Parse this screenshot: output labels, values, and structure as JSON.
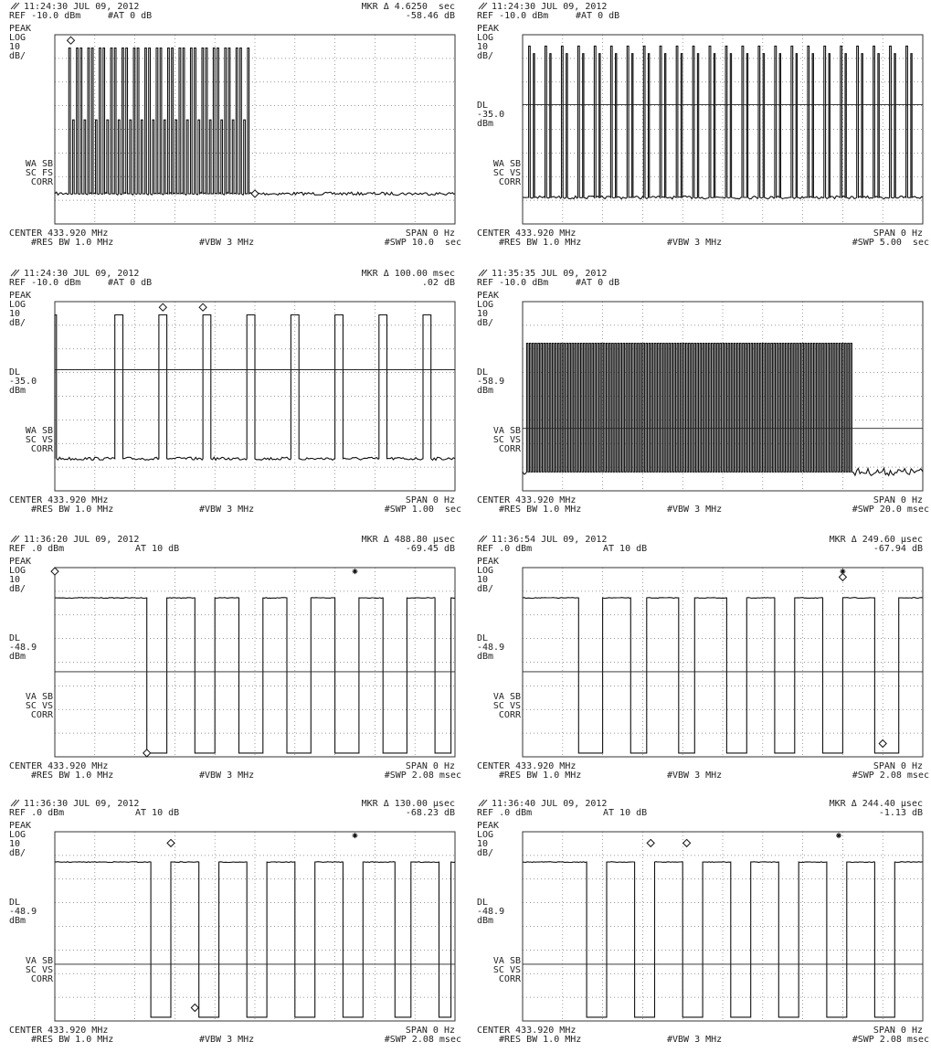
{
  "panels": [
    {
      "time": "11:24:30 JUL 09, 2012",
      "ref": "REF -10.0 dBm",
      "at": "#AT 0 dB",
      "marker": [
        "MKR Δ 4.6250  sec",
        "-58.46 dB"
      ],
      "scale": [
        "PEAK",
        "LOG",
        "10",
        "dB/"
      ],
      "status": [
        "WA SB",
        "SC FS",
        "CORR"
      ],
      "center": "CENTER 433.920 MHz",
      "span": "SPAN 0 Hz",
      "rbw": "#RES BW 1.0 MHz",
      "vbw": "#VBW 3 MHz",
      "swp": "#SWP 10.0  sec"
    },
    {
      "time": "11:24:30 JUL 09, 2012",
      "ref": "REF -10.0 dBm",
      "at": "#AT 0 dB",
      "scale": [
        "PEAK",
        "LOG",
        "10",
        "dB/"
      ],
      "dl": [
        "DL",
        "-35.0",
        "dBm"
      ],
      "status": [
        "WA SB",
        "SC VS",
        "CORR"
      ],
      "center": "CENTER 433.920 MHz",
      "span": "SPAN 0 Hz",
      "rbw": "#RES BW 1.0 MHz",
      "vbw": "#VBW 3 MHz",
      "swp": "#SWP 5.00  sec"
    },
    {
      "time": "11:24:30 JUL 09, 2012",
      "ref": "REF -10.0 dBm",
      "at": "#AT 0 dB",
      "marker": [
        "MKR Δ 100.00 msec",
        ".02 dB"
      ],
      "scale": [
        "PEAK",
        "LOG",
        "10",
        "dB/"
      ],
      "dl": [
        "DL",
        "-35.0",
        "dBm"
      ],
      "status": [
        "WA SB",
        "SC VS",
        "CORR"
      ],
      "center": "CENTER 433.920 MHz",
      "span": "SPAN 0 Hz",
      "rbw": "#RES BW 1.0 MHz",
      "vbw": "#VBW 3 MHz",
      "swp": "#SWP 1.00  sec"
    },
    {
      "time": "11:35:35 JUL 09, 2012",
      "ref": "REF -10.0 dBm",
      "at": "#AT 0 dB",
      "scale": [
        "PEAK",
        "LOG",
        "10",
        "dB/"
      ],
      "dl": [
        "DL",
        "-58.9",
        "dBm"
      ],
      "status": [
        "VA SB",
        "SC VS",
        "CORR"
      ],
      "center": "CENTER 433.920 MHz",
      "span": "SPAN 0 Hz",
      "rbw": "#RES BW 1.0 MHz",
      "vbw": "#VBW 3 MHz",
      "swp": "#SWP 20.0 msec"
    },
    {
      "time": "11:36:20 JUL 09, 2012",
      "ref": "REF .0 dBm",
      "at": "AT 10 dB",
      "marker": [
        "MKR Δ 488.80 µsec",
        "-69.45 dB"
      ],
      "scale": [
        "PEAK",
        "LOG",
        "10",
        "dB/"
      ],
      "dl": [
        "DL",
        "-48.9",
        "dBm"
      ],
      "status": [
        "VA SB",
        "SC VS",
        "CORR"
      ],
      "center": "CENTER 433.920 MHz",
      "span": "SPAN 0 Hz",
      "rbw": "#RES BW 1.0 MHz",
      "vbw": "#VBW 3 MHz",
      "swp": "#SWP 2.08 msec"
    },
    {
      "time": "11:36:54 JUL 09, 2012",
      "ref": "REF .0 dBm",
      "at": "AT 10 dB",
      "marker": [
        "MKR Δ 249.60 µsec",
        "-67.94 dB"
      ],
      "scale": [
        "PEAK",
        "LOG",
        "10",
        "dB/"
      ],
      "dl": [
        "DL",
        "-48.9",
        "dBm"
      ],
      "status": [
        "VA SB",
        "SC VS",
        "CORR"
      ],
      "center": "CENTER 433.920 MHz",
      "span": "SPAN 0 Hz",
      "rbw": "#RES BW 1.0 MHz",
      "vbw": "#VBW 3 MHz",
      "swp": "#SWP 2.08 msec"
    },
    {
      "time": "11:36:30 JUL 09, 2012",
      "ref": "REF .0 dBm",
      "at": "AT 10 dB",
      "marker": [
        "MKR Δ 130.00 µsec",
        "-68.23 dB"
      ],
      "scale": [
        "PEAK",
        "LOG",
        "10",
        "dB/"
      ],
      "dl": [
        "DL",
        "-48.9",
        "dBm"
      ],
      "status": [
        "VA SB",
        "SC VS",
        "CORR"
      ],
      "center": "CENTER 433.920 MHz",
      "span": "SPAN 0 Hz",
      "rbw": "#RES BW 1.0 MHz",
      "vbw": "#VBW 3 MHz",
      "swp": "#SWP 2.08 msec"
    },
    {
      "time": "11:36:40 JUL 09, 2012",
      "ref": "REF .0 dBm",
      "at": "AT 10 dB",
      "marker": [
        "MKR Δ 244.40 µsec",
        "-1.13 dB"
      ],
      "scale": [
        "PEAK",
        "LOG",
        "10",
        "dB/"
      ],
      "dl": [
        "DL",
        "-48.9",
        "dBm"
      ],
      "status": [
        "VA SB",
        "SC VS",
        "CORR"
      ],
      "center": "CENTER 433.920 MHz",
      "span": "SPAN 0 Hz",
      "rbw": "#RES BW 1.0 MHz",
      "vbw": "#VBW 3 MHz",
      "swp": "#SWP 2.08 msec"
    }
  ]
}
